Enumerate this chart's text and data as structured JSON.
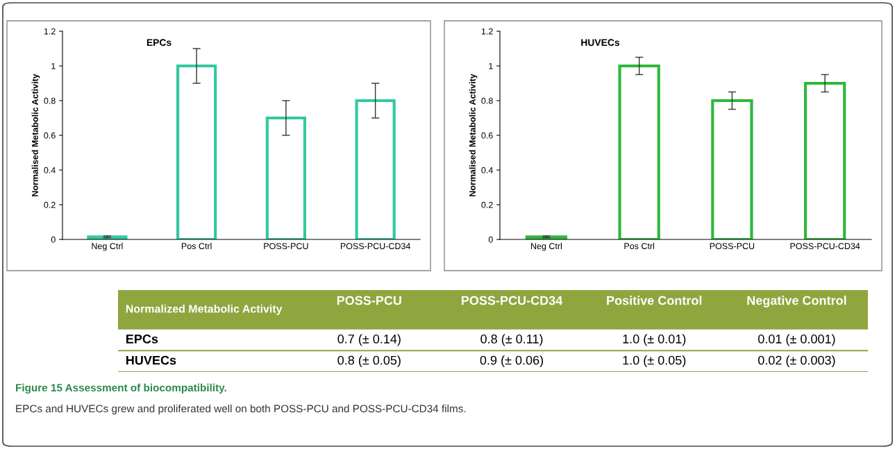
{
  "chart_data": [
    {
      "type": "bar",
      "title": "EPCs",
      "ylabel": "Normalised Metabolic Activity",
      "categories": [
        "Neg Ctrl",
        "Pos Ctrl",
        "POSS-PCU",
        "POSS-PCU-CD34"
      ],
      "series": [
        {
          "color": "#33c9a0",
          "values": [
            0.015,
            1,
            0.7,
            0.8
          ],
          "errors": [
            0.005,
            0.1,
            0.1,
            0.1
          ]
        }
      ],
      "ylim": [
        0,
        1.2
      ],
      "yticks": [
        0,
        0.2,
        0.4,
        0.6,
        0.8,
        1,
        1.2
      ],
      "grid": false
    },
    {
      "type": "bar",
      "title": "HUVECs",
      "ylabel": "Normalised Metabolic Activity",
      "categories": [
        "Neg Ctrl",
        "Pos Ctrl",
        "POSS-PCU",
        "POSS-PCU-CD34"
      ],
      "series": [
        {
          "color": "#2eb83c",
          "values": [
            0.015,
            1,
            0.8,
            0.9
          ],
          "errors": [
            0.005,
            0.05,
            0.05,
            0.05
          ]
        }
      ],
      "ylim": [
        0,
        1.2
      ],
      "yticks": [
        0,
        0.2,
        0.4,
        0.6,
        0.8,
        1,
        1.2
      ],
      "grid": false
    },
    {
      "type": "other",
      "title": "Normalized Metabolic Activity",
      "categories": [
        "POSS-PCU",
        "POSS-PCU-CD34",
        "Positive Control",
        "Negative Control"
      ],
      "y_categories": [
        "EPCs",
        "HUVECs"
      ],
      "cell_labels": [
        [
          "0.7 (± 0.14)",
          "0.8 (± 0.11)",
          "1.0 (± 0.01)",
          "0.01 (± 0.001)"
        ],
        [
          "0.8 (± 0.05)",
          "0.9 (± 0.06)",
          "1.0 (± 0.05)",
          "0.02 (± 0.003)"
        ]
      ],
      "annotations": [
        "Figure 15 Assessment of biocompatibility.",
        "EPCs and HUVECs grew and proliferated well on both POSS-PCU and POSS-PCU-CD34 films."
      ]
    }
  ]
}
